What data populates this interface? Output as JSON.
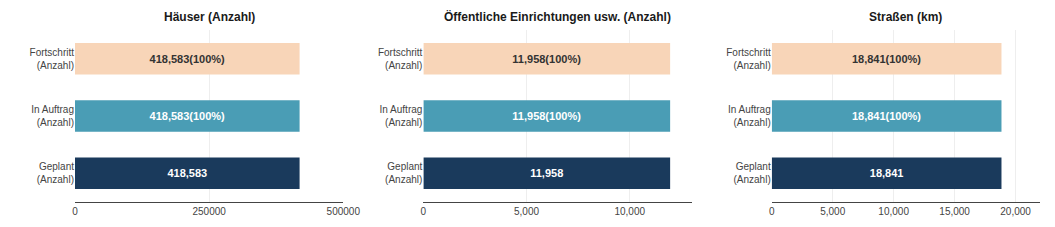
{
  "chart_data": [
    {
      "type": "bar",
      "orientation": "horizontal",
      "title": "Häuser (Anzahl)",
      "categories": [
        "Fortschritt\n(Anzahl)",
        "In Auftrag\n(Anzahl)",
        "Geplant\n(Anzahl)"
      ],
      "values": [
        418583,
        418583,
        418583
      ],
      "value_labels": [
        "418,583(100%)",
        "418,583(100%)",
        "418,583"
      ],
      "colors": [
        "#f8d5b8",
        "#4a9db5",
        "#1a3a5c"
      ],
      "xlim": [
        0,
        500000
      ],
      "xticks": [
        0,
        250000,
        500000
      ],
      "grid": true,
      "data_labels": true
    },
    {
      "type": "bar",
      "orientation": "horizontal",
      "title": "Öffentliche Einrichtungen usw. (Anzahl)",
      "categories": [
        "Fortschritt\n(Anzahl)",
        "In Auftrag\n(Anzahl)",
        "Geplant\n(Anzahl)"
      ],
      "values": [
        11958,
        11958,
        11958
      ],
      "value_labels": [
        "11,958(100%)",
        "11,958(100%)",
        "11,958"
      ],
      "colors": [
        "#f8d5b8",
        "#4a9db5",
        "#1a3a5c"
      ],
      "xlim": [
        0,
        13000
      ],
      "xticks": [
        0,
        {
          "value": 5000,
          "label": "5,000"
        },
        {
          "value": 10000,
          "label": "10,000"
        }
      ],
      "grid": true,
      "data_labels": true
    },
    {
      "type": "bar",
      "orientation": "horizontal",
      "title": "Straßen (km)",
      "categories": [
        "Fortschritt\n(Anzahl)",
        "In Auftrag\n(Anzahl)",
        "Geplant\n(Anzahl)"
      ],
      "values": [
        18841,
        18841,
        18841
      ],
      "value_labels": [
        "18,841(100%)",
        "18,841(100%)",
        "18,841"
      ],
      "colors": [
        "#f8d5b8",
        "#4a9db5",
        "#1a3a5c"
      ],
      "xlim": [
        0,
        22000
      ],
      "xticks": [
        0,
        {
          "value": 5000,
          "label": "5,000"
        },
        {
          "value": 10000,
          "label": "10,000"
        },
        {
          "value": 15000,
          "label": "15,000"
        },
        {
          "value": 20000,
          "label": "20,000"
        }
      ],
      "grid": true,
      "data_labels": true
    }
  ]
}
